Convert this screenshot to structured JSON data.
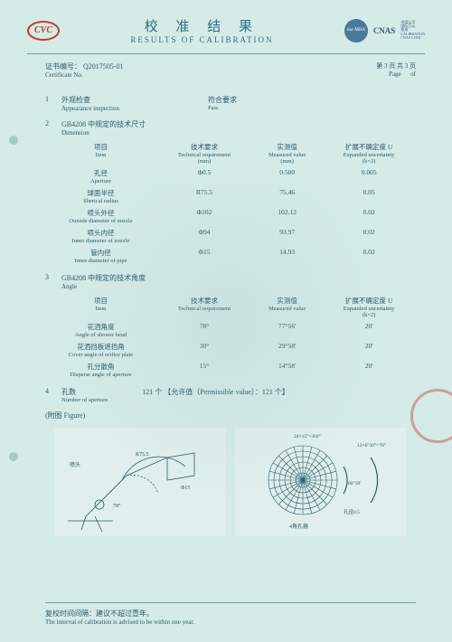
{
  "logo_cvc": "CVC",
  "header": {
    "title_cn": "校 准 结 果",
    "title_en": "RESULTS OF CALIBRATION",
    "cnas": "CNAS",
    "cnas_sub1": "中国认可",
    "cnas_sub2": "国际互认",
    "cnas_sub3": "校准",
    "cnas_sub4": "CALIBRATION",
    "cnas_sub5": "CNAS L1892",
    "badge": "ilac-MRA"
  },
  "cert": {
    "label_cn": "证书编号：",
    "label_en": "Certificate No.",
    "number": "Q2017505-01",
    "page_cn": "第 3 页 共 3 页",
    "page_en_l": "Page",
    "page_en_r": "of"
  },
  "sec1": {
    "num": "1",
    "title_cn": "外观检查",
    "title_en": "Appearance inspection",
    "val_cn": "符合要求",
    "val_en": "Pass"
  },
  "sec2": {
    "num": "2",
    "title_cn": "GB4208 中规定的技术尺寸",
    "title_en": "Dimension",
    "head": {
      "item_cn": "项目",
      "item_en": "Item",
      "req_cn": "技术要求",
      "req_en": "Technical requirement",
      "req_unit": "(mm)",
      "meas_cn": "实测值",
      "meas_en": "Measured value",
      "meas_unit": "(mm)",
      "unc_cn": "扩展不确定度 U",
      "unc_en": "Expanded uncertainty",
      "unc_unit": "(k=2)"
    },
    "rows": [
      {
        "item_cn": "孔径",
        "item_en": "Aperture",
        "req": "Φ0.5",
        "meas": "0.500",
        "unc": "0.005"
      },
      {
        "item_cn": "球面半径",
        "item_en": "Sherical radius",
        "req": "R75.5",
        "meas": "75.46",
        "unc": "0.05"
      },
      {
        "item_cn": "喷头外径",
        "item_en": "Outside diameter of nozzle",
        "req": "Φ102",
        "meas": "102.12",
        "unc": "0.02"
      },
      {
        "item_cn": "喷头内径",
        "item_en": "Inner diameter of nozzle",
        "req": "Φ94",
        "meas": "93.97",
        "unc": "0.02"
      },
      {
        "item_cn": "管内径",
        "item_en": "Inner diameter of pipe",
        "req": "Φ15",
        "meas": "14.93",
        "unc": "0.02"
      }
    ]
  },
  "sec3": {
    "num": "3",
    "title_cn": "GB4208 中规定的技术角度",
    "title_en": "Angle",
    "head": {
      "item_cn": "项目",
      "item_en": "Item",
      "req_cn": "技术要求",
      "req_en": "Technical requirement",
      "meas_cn": "实测值",
      "meas_en": "Measured value",
      "unc_cn": "扩展不确定度 U",
      "unc_en": "Expanded uncertainty",
      "unc_unit": "(k=2)"
    },
    "rows": [
      {
        "item_cn": "花洒角度",
        "item_en": "Angle of shower head",
        "req": "78°",
        "meas": "77°56'",
        "unc": "20'"
      },
      {
        "item_cn": "花洒挡板遮挡角",
        "item_en": "Cover angle of orifice plate",
        "req": "30°",
        "meas": "29°58'",
        "unc": "20'"
      },
      {
        "item_cn": "孔分散角",
        "item_en": "Disperse angle of aperture",
        "req": "15°",
        "meas": "14°58'",
        "unc": "20'"
      }
    ]
  },
  "sec4": {
    "num": "4",
    "title_cn": "孔数",
    "title_en": "Number of aperture",
    "val": "121  个  【允许值（Permissible value）：121 个】"
  },
  "figure_note": "(附图 Figure)",
  "fig_labels": {
    "left_title": "喷头",
    "r755": "R75.5",
    "d15": "Φ15",
    "angle78": "78°",
    "right_eq1": "24×15°=360°",
    "right_eq2": "12×6°30°=78°",
    "right_l1": "60°30'",
    "right_l2": "孔径0.5",
    "right_caption": "4角孔器"
  },
  "footer": {
    "cn": "复校时间间隔：建议不超过壹年。",
    "en": "The interval of calibration is advised to be within one year."
  },
  "colors": {
    "bg": "#d4ebe8",
    "text": "#2a5a6a",
    "accent": "#2a7080",
    "rule": "#6aa0a8",
    "red": "#c0392b"
  }
}
